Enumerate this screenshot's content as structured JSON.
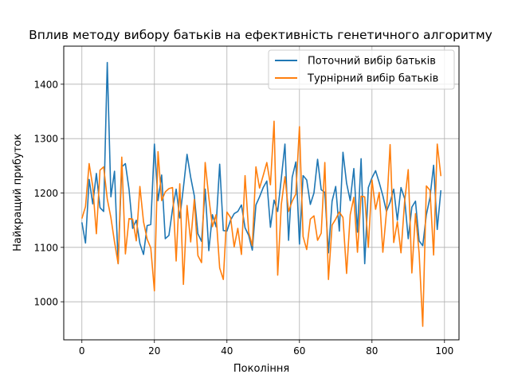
{
  "chart_data": {
    "type": "line",
    "title": "Вплив методу вибору батьків на ефективність генетичного алгоритму",
    "xlabel": "Покоління",
    "ylabel": "Найкращий прибуток",
    "xlim": [
      -5,
      104
    ],
    "ylim": [
      930,
      1470
    ],
    "xticks": [
      0,
      20,
      40,
      60,
      80,
      100
    ],
    "yticks": [
      1000,
      1100,
      1200,
      1300,
      1400
    ],
    "grid": true,
    "legend_position": "top-right",
    "x": [
      0,
      1,
      2,
      3,
      4,
      5,
      6,
      7,
      8,
      9,
      10,
      11,
      12,
      13,
      14,
      15,
      16,
      17,
      18,
      19,
      20,
      21,
      22,
      23,
      24,
      25,
      26,
      27,
      28,
      29,
      30,
      31,
      32,
      33,
      34,
      35,
      36,
      37,
      38,
      39,
      40,
      41,
      42,
      43,
      44,
      45,
      46,
      47,
      48,
      49,
      50,
      51,
      52,
      53,
      54,
      55,
      56,
      57,
      58,
      59,
      60,
      61,
      62,
      63,
      64,
      65,
      66,
      67,
      68,
      69,
      70,
      71,
      72,
      73,
      74,
      75,
      76,
      77,
      78,
      79,
      80,
      81,
      82,
      83,
      84,
      85,
      86,
      87,
      88,
      89,
      90,
      91,
      92,
      93,
      94,
      95,
      96,
      97,
      98,
      99
    ],
    "series": [
      {
        "name": "Поточний вибір батьків",
        "color": "#1f77b4",
        "values": [
          1146,
          1108,
          1225,
          1180,
          1236,
          1173,
          1166,
          1440,
          1193,
          1240,
          1070,
          1248,
          1254,
          1207,
          1135,
          1150,
          1107,
          1087,
          1140,
          1142,
          1290,
          1186,
          1233,
          1116,
          1122,
          1170,
          1207,
          1154,
          1210,
          1271,
          1229,
          1195,
          1125,
          1111,
          1207,
          1094,
          1160,
          1138,
          1253,
          1131,
          1130,
          1150,
          1162,
          1166,
          1178,
          1136,
          1122,
          1095,
          1178,
          1193,
          1210,
          1222,
          1137,
          1187,
          1166,
          1227,
          1290,
          1113,
          1229,
          1257,
          1106,
          1232,
          1224,
          1179,
          1200,
          1262,
          1206,
          1201,
          1090,
          1185,
          1212,
          1130,
          1275,
          1218,
          1186,
          1245,
          1128,
          1263,
          1070,
          1210,
          1228,
          1241,
          1219,
          1195,
          1166,
          1183,
          1207,
          1150,
          1210,
          1190,
          1116,
          1174,
          1185,
          1112,
          1103,
          1160,
          1192,
          1251,
          1133,
          1205
        ]
      },
      {
        "name": "Турнірний вибір батьків",
        "color": "#ff7f0e",
        "values": [
          1153,
          1175,
          1254,
          1212,
          1125,
          1242,
          1248,
          1189,
          1155,
          1110,
          1070,
          1266,
          1088,
          1153,
          1152,
          1112,
          1212,
          1147,
          1115,
          1099,
          1020,
          1276,
          1186,
          1202,
          1208,
          1210,
          1075,
          1217,
          1032,
          1177,
          1110,
          1188,
          1085,
          1072,
          1256,
          1192,
          1138,
          1160,
          1062,
          1041,
          1165,
          1155,
          1101,
          1135,
          1087,
          1232,
          1128,
          1103,
          1248,
          1209,
          1232,
          1256,
          1215,
          1332,
          1049,
          1179,
          1230,
          1166,
          1185,
          1198,
          1322,
          1120,
          1096,
          1152,
          1158,
          1113,
          1126,
          1256,
          1041,
          1141,
          1152,
          1165,
          1155,
          1052,
          1160,
          1192,
          1091,
          1194,
          1193,
          1100,
          1224,
          1170,
          1201,
          1091,
          1165,
          1289,
          1109,
          1147,
          1090,
          1184,
          1243,
          1053,
          1162,
          1090,
          955,
          1213,
          1205,
          1086,
          1290,
          1231
        ]
      }
    ]
  }
}
